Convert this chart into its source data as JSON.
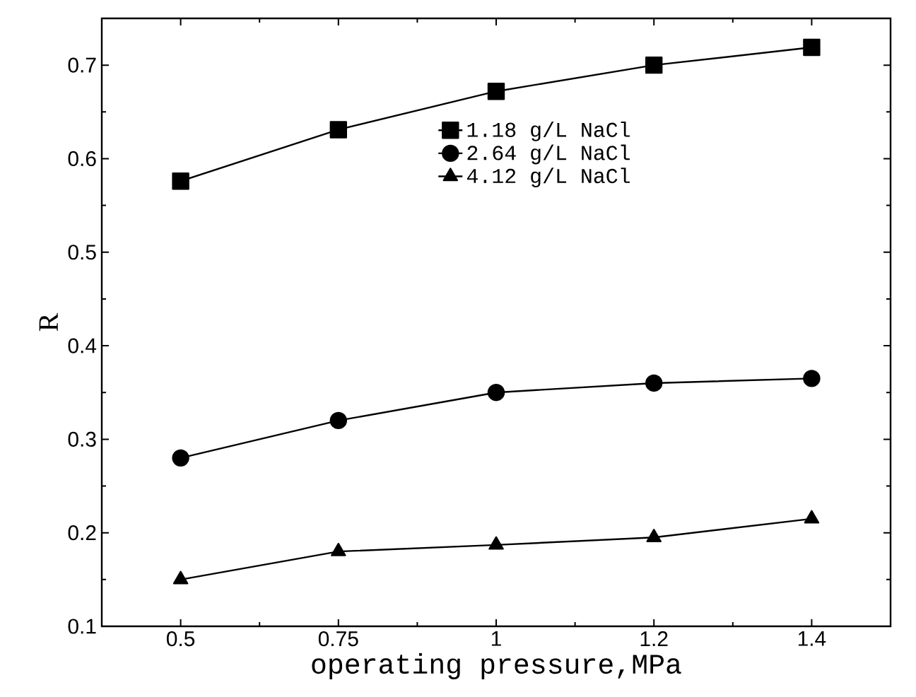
{
  "chart_data": {
    "type": "line",
    "xlabel": "operating pressure,MPa",
    "ylabel": "R",
    "categories": [
      "0.5",
      "0.75",
      "1",
      "1.2",
      "1.4"
    ],
    "series": [
      {
        "name": "1.18 g/L NaCl",
        "color": "#000000",
        "marker": "square",
        "values": [
          0.576,
          0.631,
          0.672,
          0.7,
          0.719
        ]
      },
      {
        "name": "2.64 g/L NaCl",
        "color": "#000000",
        "marker": "circle",
        "values": [
          0.28,
          0.32,
          0.35,
          0.36,
          0.365
        ]
      },
      {
        "name": "4.12 g/L NaCl",
        "color": "#000000",
        "marker": "triangle",
        "values": [
          0.15,
          0.18,
          0.187,
          0.195,
          0.215
        ]
      }
    ],
    "ylim": [
      0.1,
      0.75
    ],
    "yticks": [
      0.1,
      0.2,
      0.3,
      0.4,
      0.5,
      0.6,
      0.7
    ],
    "grid": false,
    "legend": "top",
    "line_style": "solid"
  }
}
